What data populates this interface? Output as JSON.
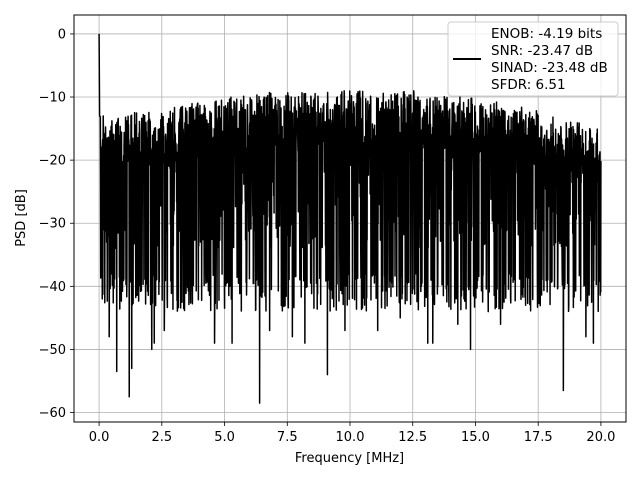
{
  "chart_data": {
    "type": "line",
    "title": "",
    "xlabel": "Frequency [MHz]",
    "ylabel": "PSD [dB]",
    "xlim": [
      -1.0,
      21.0
    ],
    "ylim": [
      -61.5,
      3.0
    ],
    "xticks": [
      0.0,
      2.5,
      5.0,
      7.5,
      10.0,
      12.5,
      15.0,
      17.5,
      20.0
    ],
    "xtick_labels": [
      "0.0",
      "2.5",
      "5.0",
      "7.5",
      "10.0",
      "12.5",
      "15.0",
      "17.5",
      "20.0"
    ],
    "yticks": [
      0,
      -10,
      -20,
      -30,
      -40,
      -50,
      -60
    ],
    "ytick_labels": [
      "0",
      "−10",
      "−20",
      "−30",
      "−40",
      "−50",
      "−60"
    ],
    "grid": true,
    "legend_position": "top-right",
    "legend": [
      "ENOB: -4.19 bits",
      "SNR: -23.47 dB",
      "SINAD: -23.48 dB",
      "SFDR: 6.51"
    ],
    "series": [
      {
        "color": "#000000",
        "noise_floor_band_db": [
          -38,
          -16
        ],
        "upper_envelope_db": [
          [
            0.0,
            -13
          ],
          [
            2.5,
            -12
          ],
          [
            5.0,
            -10
          ],
          [
            7.5,
            -9
          ],
          [
            10.0,
            -9
          ],
          [
            12.5,
            -9
          ],
          [
            15.0,
            -10
          ],
          [
            17.5,
            -12
          ],
          [
            20.0,
            -15
          ]
        ],
        "peaks": [
          [
            0.0,
            0.0
          ],
          [
            0.02,
            -13
          ],
          [
            0.3,
            -33
          ]
        ],
        "notable_dips": [
          [
            0.4,
            -48
          ],
          [
            0.7,
            -53.5
          ],
          [
            1.2,
            -57.5
          ],
          [
            1.3,
            -53
          ],
          [
            2.1,
            -50
          ],
          [
            2.2,
            -49
          ],
          [
            2.6,
            -47
          ],
          [
            4.6,
            -49
          ],
          [
            5.3,
            -49
          ],
          [
            6.4,
            -58.5
          ],
          [
            6.8,
            -47
          ],
          [
            7.7,
            -48
          ],
          [
            8.2,
            -49
          ],
          [
            9.1,
            -54
          ],
          [
            9.8,
            -47
          ],
          [
            11.1,
            -47
          ],
          [
            12.0,
            -45
          ],
          [
            13.1,
            -49
          ],
          [
            13.3,
            -49
          ],
          [
            14.3,
            -46
          ],
          [
            14.8,
            -50
          ],
          [
            16.0,
            -46
          ],
          [
            17.0,
            -43
          ],
          [
            18.5,
            -56.5
          ],
          [
            19.4,
            -48
          ],
          [
            19.7,
            -49
          ]
        ]
      }
    ]
  }
}
